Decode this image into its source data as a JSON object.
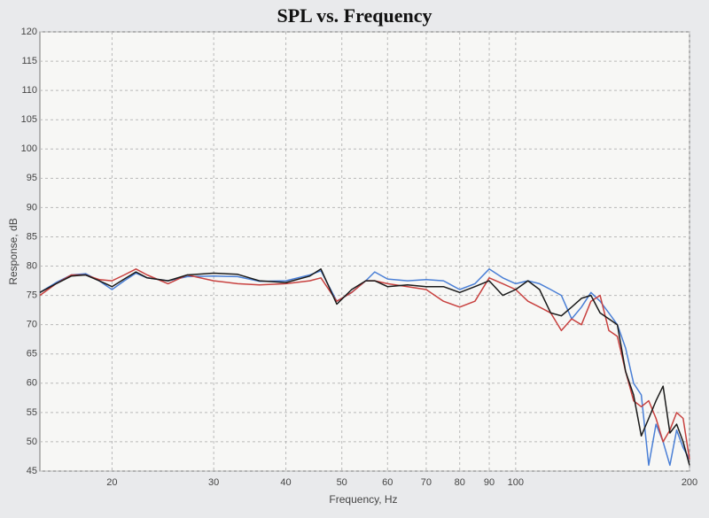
{
  "chart_data": {
    "type": "line",
    "title": "SPL vs. Frequency",
    "x_label": "Frequency, Hz",
    "y_label": "Response, dB",
    "x": [
      15,
      16,
      17,
      18,
      19,
      20,
      21,
      22,
      23,
      25,
      27,
      30,
      33,
      36,
      40,
      44,
      46,
      49,
      52,
      55,
      57,
      60,
      65,
      70,
      75,
      80,
      85,
      90,
      95,
      100,
      105,
      110,
      115,
      120,
      125,
      130,
      135,
      140,
      145,
      150,
      155,
      160,
      165,
      170,
      175,
      180,
      185,
      190,
      195,
      200
    ],
    "series": [
      {
        "name": "Blue",
        "color": "#4a7fd6",
        "values": [
          75.5,
          77.2,
          78.5,
          78.7,
          77.5,
          76,
          77.5,
          78.8,
          78,
          77.5,
          78.2,
          78.3,
          78.2,
          77.4,
          77.5,
          78.5,
          79.2,
          74,
          75.5,
          77.5,
          79,
          77.8,
          77.5,
          77.7,
          77.5,
          76,
          77,
          79.5,
          78,
          77,
          77.5,
          77,
          76,
          75,
          71,
          73,
          75.5,
          74,
          72,
          70,
          66,
          60,
          58,
          46,
          53,
          50,
          46,
          52,
          49,
          47
        ]
      },
      {
        "name": "Red",
        "color": "#c8413f",
        "values": [
          75,
          77,
          78.5,
          78.5,
          77.7,
          77.5,
          78.5,
          79.5,
          78.5,
          77,
          78.5,
          77.5,
          77,
          76.8,
          77,
          77.5,
          78,
          74,
          75.5,
          77.5,
          77.5,
          77,
          76.5,
          76,
          74,
          73,
          74,
          78,
          77,
          76,
          74,
          73,
          72,
          69,
          71,
          70,
          74,
          75,
          69,
          68,
          62,
          57,
          56,
          57,
          54,
          50,
          52,
          55,
          54,
          47
        ]
      },
      {
        "name": "Black",
        "color": "#1a1a1a",
        "values": [
          75.5,
          77,
          78.3,
          78.5,
          77.5,
          76.5,
          77.8,
          79,
          78,
          77.5,
          78.5,
          78.8,
          78.6,
          77.5,
          77.2,
          78.3,
          79.5,
          73.5,
          76,
          77.5,
          77.5,
          76.5,
          76.8,
          76.5,
          76.5,
          75.5,
          76.5,
          77.5,
          75,
          76,
          77.5,
          76,
          72,
          71.5,
          73,
          74.5,
          75,
          72,
          71,
          70,
          62,
          58,
          51,
          54,
          57,
          59.5,
          51.5,
          53,
          50,
          46
        ]
      }
    ],
    "xlim": [
      15,
      200
    ],
    "xticks": [
      20,
      30,
      40,
      50,
      60,
      70,
      80,
      90,
      100,
      200
    ],
    "log_x": true,
    "ylim": [
      45,
      120
    ],
    "yticks": [
      45,
      50,
      55,
      60,
      65,
      70,
      75,
      80,
      85,
      90,
      95,
      100,
      105,
      110,
      115,
      120
    ],
    "grid": true
  }
}
